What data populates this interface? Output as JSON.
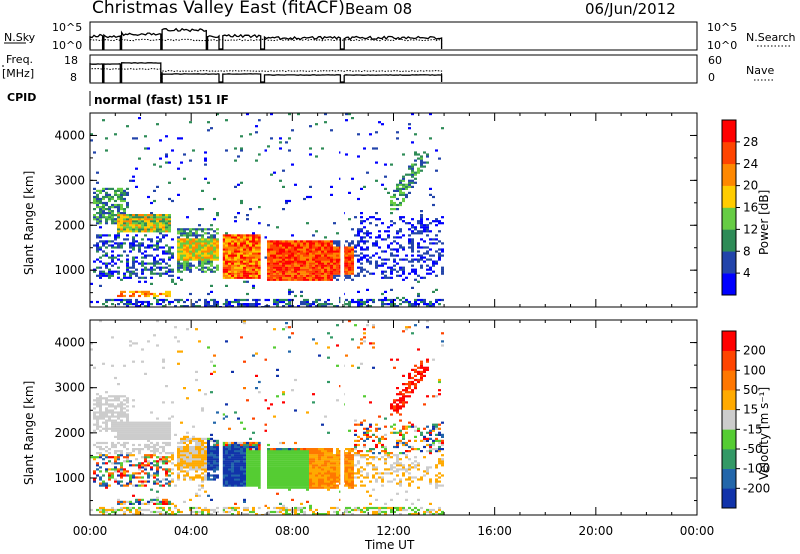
{
  "header": {
    "title": "Christmas Valley East (fitACF)",
    "beam": "Beam 08",
    "date": "06/Jun/2012"
  },
  "nsky_panel": {
    "label": "N.Sky",
    "ticks_left": [
      "10^5",
      "10^0"
    ],
    "ticks_right": [
      "10^5",
      "10^0"
    ],
    "right_label": "N.Search"
  },
  "freq_panel": {
    "label_line1": "Freq.",
    "label_line2": "[MHz]",
    "ticks_left": [
      "18",
      "8"
    ],
    "ticks_right": [
      "60",
      "0"
    ],
    "right_label": "Nave"
  },
  "cpid": {
    "label": "CPID",
    "value": "normal (fast) 151 IF"
  },
  "colors": {
    "power_scale": [
      "#0000ff",
      "#2244aa",
      "#2e8b57",
      "#66cc44",
      "#ffcc00",
      "#ff8800",
      "#ff4400",
      "#ff0000"
    ],
    "velocity_scale": [
      "#1133aa",
      "#2266aa",
      "#339966",
      "#55cc33",
      "#cccccc",
      "#ffaa00",
      "#ff7700",
      "#ff4400",
      "#ff0000"
    ]
  },
  "chart_data": [
    {
      "type": "heatmap",
      "ylabel": "Slant Range [km]",
      "xlabel": "Time UT",
      "x_ticks": [
        "00:00",
        "04:00",
        "08:00",
        "12:00",
        "16:00",
        "20:00",
        "00:00"
      ],
      "y_ticks": [
        "4000",
        "3000",
        "2000",
        "1000"
      ],
      "ylim": [
        180,
        4500
      ],
      "xlim_hours": [
        0,
        24
      ],
      "colorbar": {
        "label": "Power [dB]",
        "ticks": [
          "28",
          "24",
          "20",
          "16",
          "12",
          "8",
          "4"
        ],
        "range": [
          0,
          30
        ]
      },
      "data_extent_hours": [
        0,
        13.9
      ]
    },
    {
      "type": "heatmap",
      "ylabel": "Slant Range [km]",
      "xlabel": "Time UT",
      "x_ticks": [
        "00:00",
        "04:00",
        "08:00",
        "12:00",
        "16:00",
        "20:00",
        "00:00"
      ],
      "y_ticks": [
        "4000",
        "3000",
        "2000",
        "1000"
      ],
      "ylim": [
        180,
        4500
      ],
      "xlim_hours": [
        0,
        24
      ],
      "colorbar": {
        "label": "Velocity [m s⁻¹]",
        "ticks": [
          "200",
          "100",
          "50",
          "15",
          "-15",
          "-50",
          "-100",
          "-200"
        ]
      },
      "data_extent_hours": [
        0,
        13.9
      ]
    }
  ]
}
